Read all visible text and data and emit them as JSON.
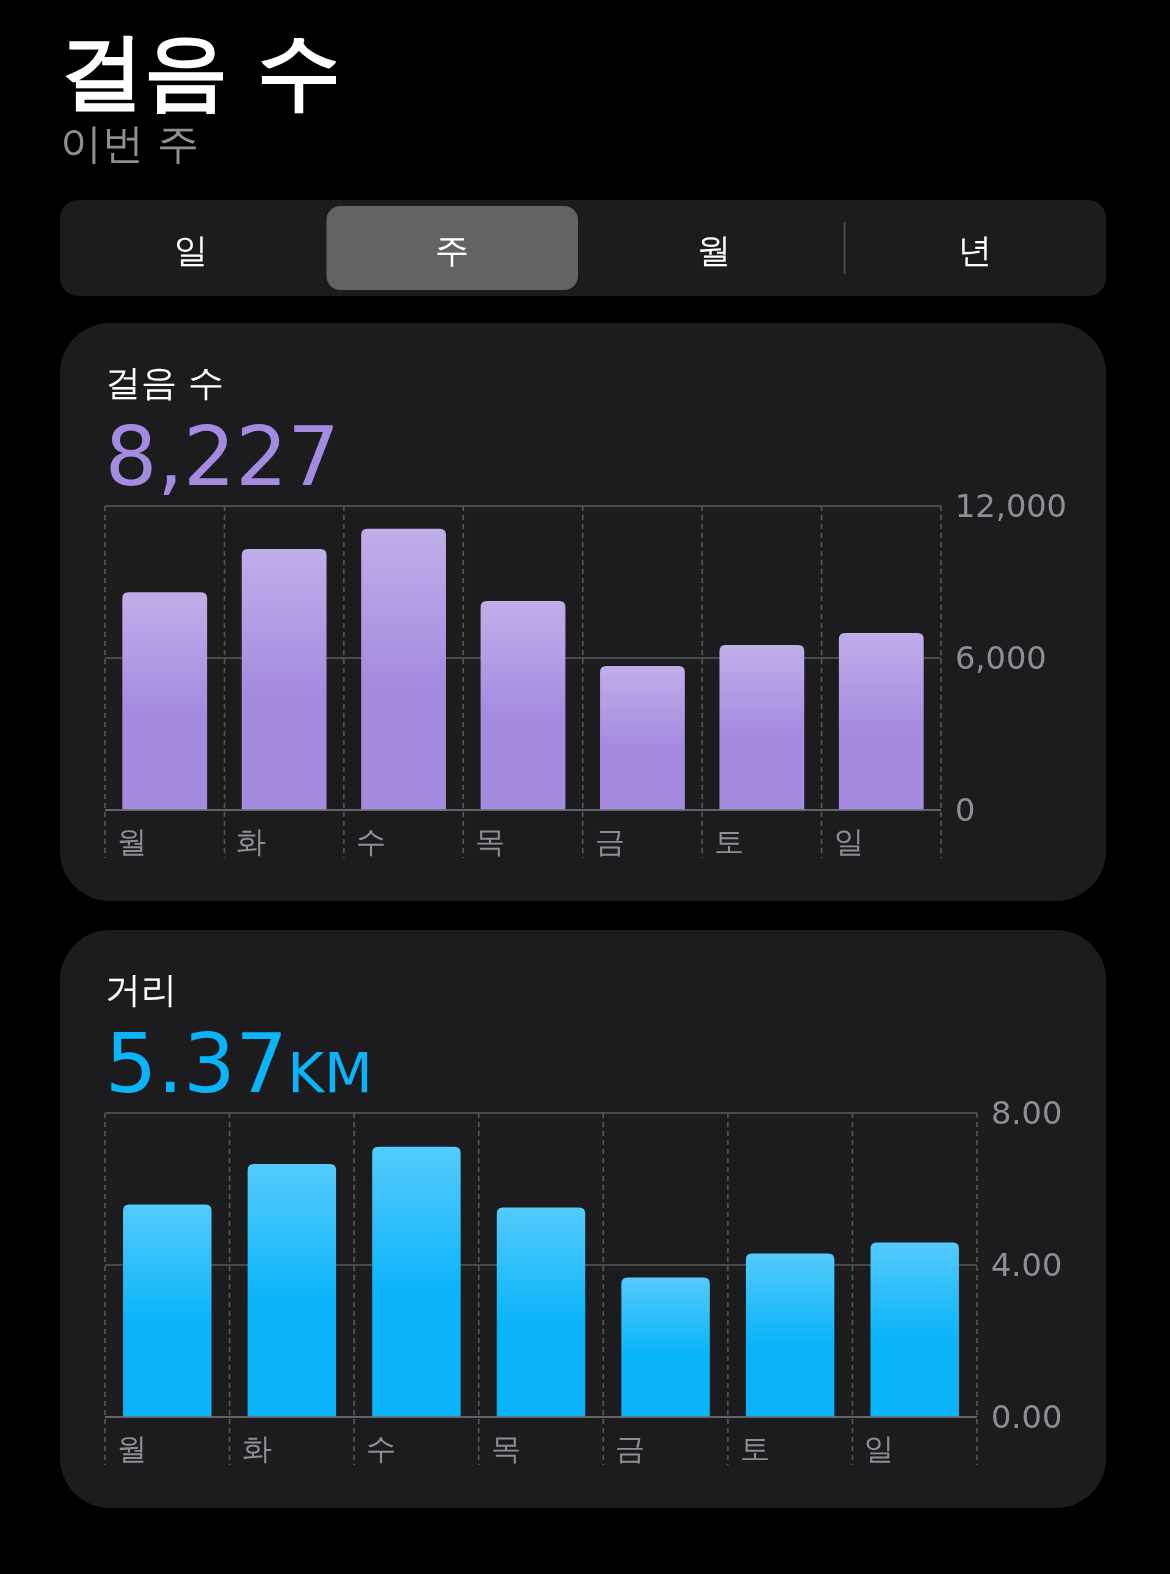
{
  "chart_data": [
    {
      "type": "other",
      "title": "걸음 수",
      "subtitle": "이번 주",
      "annotations": [
        "일",
        "주",
        "월",
        "년"
      ]
    },
    {
      "type": "bar",
      "title": "걸음 수",
      "subtitle": "8,227",
      "categories": [
        "월",
        "화",
        "수",
        "목",
        "금",
        "토",
        "일"
      ],
      "color": "#a58be0",
      "values": [
        8600,
        10300,
        11100,
        8250,
        5680,
        6510,
        6990
      ],
      "ylim": [
        0,
        12000
      ],
      "yticks": [
        0,
        {
          "value": 6000,
          "label": "6,000"
        },
        {
          "value": 12000,
          "label": "12,000"
        }
      ],
      "grid": true
    },
    {
      "type": "bar",
      "title": "거리",
      "subtitle": "5.37KM",
      "categories": [
        "월",
        "화",
        "수",
        "목",
        "금",
        "토",
        "일"
      ],
      "color": "#0ab4fa",
      "values": [
        5.59,
        6.66,
        7.11,
        5.51,
        3.67,
        4.3,
        4.59
      ],
      "ylim": [
        0,
        8
      ],
      "yticks": [
        {
          "value": 0,
          "label": "0.00"
        },
        {
          "value": 4,
          "label": "4.00"
        },
        {
          "value": 8,
          "label": "8.00"
        }
      ],
      "grid": true
    }
  ]
}
